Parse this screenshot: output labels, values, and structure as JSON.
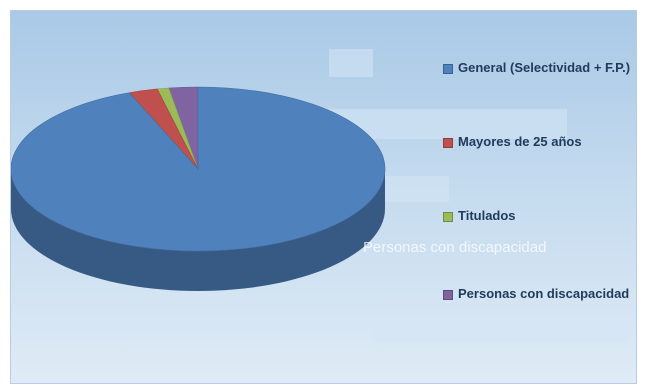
{
  "chart_data": {
    "type": "pie",
    "title": "",
    "categories": [
      "General (Selectividad + F.P.)",
      "Mayores de 25 años",
      "Titulados",
      "Personas con discapacidad"
    ],
    "values": [
      94,
      2.5,
      1,
      2.5
    ],
    "unit": "%",
    "colors": [
      "#4f81bd",
      "#c0504d",
      "#9bbb59",
      "#8064a2"
    ],
    "legend_position": "right",
    "ghost_label": "Personas con discapacidad"
  },
  "colors": {
    "background_top": "#a9c9e6",
    "background_bottom": "#dfebf6",
    "text": "#1f3b5c"
  }
}
